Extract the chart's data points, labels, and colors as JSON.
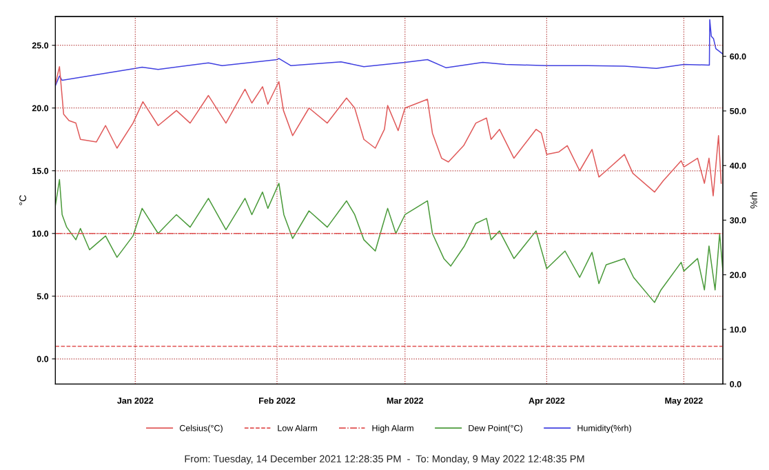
{
  "chart_data": {
    "type": "line",
    "ylabel": "°C",
    "y2label": "%rh",
    "xlim": [
      "2021-12-14T12:28",
      "2022-05-09T12:48"
    ],
    "xticks": [
      {
        "value": "2022-01-01",
        "label": "Jan 2022"
      },
      {
        "value": "2022-02-01",
        "label": "Feb 2022"
      },
      {
        "value": "2022-03-01",
        "label": "Mar 2022"
      },
      {
        "value": "2022-04-01",
        "label": "Apr 2022"
      },
      {
        "value": "2022-05-01",
        "label": "May 2022"
      }
    ],
    "ylim": [
      -2,
      27.3
    ],
    "yticks": [
      {
        "value": 0,
        "label": "0.0"
      },
      {
        "value": 5,
        "label": "5.0"
      },
      {
        "value": 10,
        "label": "10.0"
      },
      {
        "value": 15,
        "label": "15.0"
      },
      {
        "value": 20,
        "label": "20.0"
      },
      {
        "value": 25,
        "label": "25.0"
      }
    ],
    "y2lim": [
      0,
      67.3
    ],
    "y2ticks": [
      {
        "value": 0,
        "label": "0.0"
      },
      {
        "value": 10,
        "label": "10.0"
      },
      {
        "value": 20,
        "label": "20.0"
      },
      {
        "value": 30,
        "label": "30.0"
      },
      {
        "value": 40,
        "label": "40.0"
      },
      {
        "value": 50,
        "label": "50.0"
      },
      {
        "value": 60,
        "label": "60.0"
      }
    ],
    "grid": true,
    "legend": "bottom",
    "line_style": "solid",
    "marker": "none",
    "series": [
      {
        "name": "Celsius(°C)",
        "color": "#e05a5a",
        "x": [
          "2021-12-14T12:28",
          "2021-12-15T10:00",
          "2021-12-16T08:00",
          "2021-12-17T12:00",
          "2021-12-19T00:00",
          "2021-12-20T00:00",
          "2021-12-23T12:00",
          "2021-12-25T12:00",
          "2021-12-28T00:00",
          "2021-12-31T12:00",
          "2022-01-02T16:00",
          "2022-01-06T00:00",
          "2022-01-10T00:00",
          "2022-01-13T00:00",
          "2022-01-17T00:00",
          "2022-01-20T20:00",
          "2022-01-25T00:00",
          "2022-01-26T12:00",
          "2022-01-28T20:00",
          "2022-01-30T00:00",
          "2022-02-01T10:00",
          "2022-02-02T10:00",
          "2022-02-04T10:00",
          "2022-02-08T00:00",
          "2022-02-12T00:00",
          "2022-02-16T05:00",
          "2022-02-18T00:00",
          "2022-02-20T00:00",
          "2022-02-22T12:00",
          "2022-02-24T12:00",
          "2022-02-25T05:00",
          "2022-02-27T12:00",
          "2022-03-01T00:00",
          "2022-03-05T22:00",
          "2022-03-07T00:00",
          "2022-03-09T00:00",
          "2022-03-10T12:00",
          "2022-03-13T20:00",
          "2022-03-16T12:00",
          "2022-03-18T20:00",
          "2022-03-19T20:00",
          "2022-03-21T16:00",
          "2022-03-24T20:00",
          "2022-03-29T16:00",
          "2022-03-30T20:00",
          "2022-04-01T00:00",
          "2022-04-03T16:00",
          "2022-04-05T12:00",
          "2022-04-08T05:00",
          "2022-04-10T22:00",
          "2022-04-12T10:00",
          "2022-04-14T00:00",
          "2022-04-18T00:00",
          "2022-04-19T20:00",
          "2022-04-24T14:00",
          "2022-04-26T12:00",
          "2022-04-30T10:00",
          "2022-05-01T00:00",
          "2022-05-04T00:00",
          "2022-05-05T12:00",
          "2022-05-06T12:00",
          "2022-05-07T10:00",
          "2022-05-08T14:00",
          "2022-05-09T04:00"
        ],
        "values": [
          21.9,
          23.3,
          19.5,
          19.0,
          18.8,
          17.5,
          17.3,
          18.6,
          16.8,
          18.8,
          20.5,
          18.6,
          19.8,
          18.8,
          21.0,
          18.8,
          21.5,
          20.4,
          21.7,
          20.3,
          22.1,
          19.8,
          17.8,
          20.0,
          18.8,
          20.8,
          20.0,
          17.5,
          16.8,
          18.3,
          20.2,
          18.2,
          20.0,
          20.7,
          18.0,
          16.0,
          15.7,
          17.0,
          18.8,
          19.2,
          17.5,
          18.3,
          16.0,
          18.3,
          18.0,
          16.3,
          16.5,
          17.0,
          15.0,
          16.7,
          14.5,
          15.0,
          16.3,
          14.8,
          13.3,
          14.2,
          15.8,
          15.3,
          16.0,
          14.0,
          16.0,
          13.0,
          17.8,
          14.0
        ]
      },
      {
        "name": "Dew Point(°C)",
        "color": "#4a9a3a",
        "x": [
          "2021-12-14T12:28",
          "2021-12-15T10:00",
          "2021-12-16T00:00",
          "2021-12-17T00:00",
          "2021-12-19T00:00",
          "2021-12-20T00:00",
          "2021-12-22T00:00",
          "2021-12-25T12:00",
          "2021-12-28T00:00",
          "2021-12-31T12:00",
          "2022-01-02T12:00",
          "2022-01-06T00:00",
          "2022-01-10T00:00",
          "2022-01-13T00:00",
          "2022-01-17T00:00",
          "2022-01-20T20:00",
          "2022-01-25T00:00",
          "2022-01-26T12:00",
          "2022-01-28T20:00",
          "2022-01-30T00:00",
          "2022-02-01T10:00",
          "2022-02-02T12:00",
          "2022-02-04T10:00",
          "2022-02-08T00:00",
          "2022-02-12T00:00",
          "2022-02-16T05:00",
          "2022-02-18T00:00",
          "2022-02-20T00:00",
          "2022-02-22T12:00",
          "2022-02-24T00:00",
          "2022-02-25T05:00",
          "2022-02-27T00:00",
          "2022-03-01T00:00",
          "2022-03-05T22:00",
          "2022-03-07T00:00",
          "2022-03-09T12:00",
          "2022-03-11T00:00",
          "2022-03-14T00:00",
          "2022-03-16T12:00",
          "2022-03-18T20:00",
          "2022-03-19T20:00",
          "2022-03-21T16:00",
          "2022-03-24T20:00",
          "2022-03-29T16:00",
          "2022-04-01T00:00",
          "2022-04-05T00:00",
          "2022-04-08T05:00",
          "2022-04-10T22:00",
          "2022-04-12T10:00",
          "2022-04-14T00:00",
          "2022-04-18T00:00",
          "2022-04-20T00:00",
          "2022-04-24T14:00",
          "2022-04-26T00:00",
          "2022-04-30T10:00",
          "2022-05-01T00:00",
          "2022-05-04T00:00",
          "2022-05-05T12:00",
          "2022-05-06T12:00",
          "2022-05-07T20:00",
          "2022-05-08T20:00",
          "2022-05-09T12:48"
        ],
        "values": [
          12.2,
          14.3,
          11.5,
          10.5,
          9.5,
          10.4,
          8.7,
          9.8,
          8.1,
          9.8,
          12.0,
          10.0,
          11.5,
          10.5,
          12.8,
          10.3,
          12.8,
          11.5,
          13.3,
          12.0,
          14.0,
          11.5,
          9.6,
          11.8,
          10.5,
          12.6,
          11.5,
          9.5,
          8.6,
          10.5,
          12.0,
          10.0,
          11.5,
          12.6,
          10.0,
          8.0,
          7.4,
          9.0,
          10.8,
          11.2,
          9.5,
          10.2,
          8.0,
          10.2,
          7.2,
          8.6,
          6.5,
          8.5,
          6.0,
          7.5,
          8.0,
          6.5,
          4.5,
          5.5,
          7.7,
          7.0,
          8.0,
          5.5,
          9.0,
          5.5,
          10.0,
          7.0
        ]
      },
      {
        "name": "Humidity(%rh)",
        "color": "#4040e0",
        "axis": "y2",
        "x": [
          "2021-12-14T12:28",
          "2021-12-15T10:00",
          "2021-12-16T00:00",
          "2022-01-01T00:00",
          "2022-01-02T12:00",
          "2022-01-06T00:00",
          "2022-01-17T00:00",
          "2022-01-20T00:00",
          "2022-02-01T00:00",
          "2022-02-01T10:00",
          "2022-02-04T00:00",
          "2022-02-15T00:00",
          "2022-02-20T00:00",
          "2022-03-01T00:00",
          "2022-03-05T22:00",
          "2022-03-10T00:00",
          "2022-03-18T00:00",
          "2022-03-23T00:00",
          "2022-04-01T00:00",
          "2022-04-10T00:00",
          "2022-04-18T00:00",
          "2022-04-25T00:00",
          "2022-05-01T00:00",
          "2022-05-06T14:00",
          "2022-05-06T16:00",
          "2022-05-07T00:00",
          "2022-05-07T12:00",
          "2022-05-08T00:00",
          "2022-05-09T12:48"
        ],
        "values": [
          54.6,
          56.4,
          55.6,
          57.8,
          58.0,
          57.6,
          58.8,
          58.3,
          59.4,
          59.6,
          58.3,
          59.0,
          58.1,
          58.9,
          59.4,
          57.9,
          58.9,
          58.5,
          58.3,
          58.3,
          58.2,
          57.8,
          58.5,
          58.4,
          66.7,
          63.7,
          63.2,
          61.4,
          60.4
        ]
      }
    ],
    "ref_lines": [
      {
        "axis": "y",
        "value": 1.0,
        "label": "Low Alarm",
        "color": "#e05050",
        "line_style": "dashed"
      },
      {
        "axis": "y",
        "value": 10.0,
        "label": "High Alarm",
        "color": "#e05050",
        "line_style": "dashdot"
      }
    ],
    "annotations": [
      "From: Tuesday, 14 December 2021 12:28:35 PM  -  To: Monday, 9 May 2022 12:48:35 PM"
    ]
  }
}
